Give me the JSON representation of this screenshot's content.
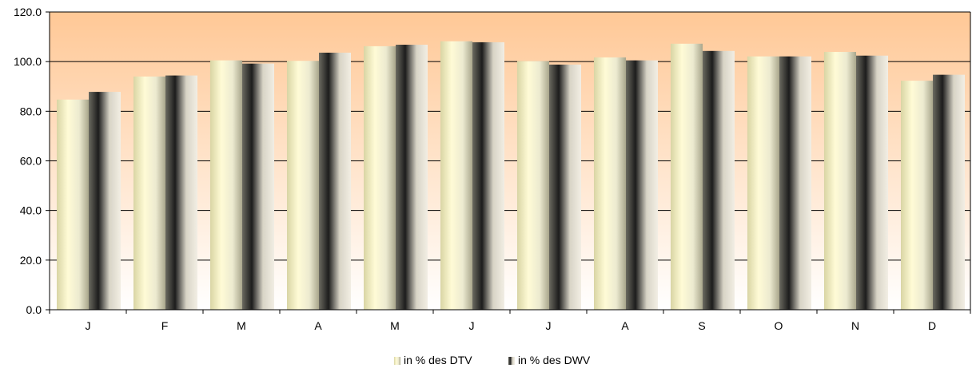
{
  "chart_data": {
    "type": "bar",
    "categories": [
      "J",
      "F",
      "M",
      "A",
      "M",
      "J",
      "J",
      "A",
      "S",
      "O",
      "N",
      "D"
    ],
    "series": [
      {
        "name": "in % des DTV",
        "values": [
          84.7,
          94.0,
          100.5,
          100.3,
          106.2,
          108.2,
          100.2,
          101.7,
          107.2,
          102.1,
          103.9,
          92.3
        ],
        "color": "#f7f4c4"
      },
      {
        "name": "in % des DWV",
        "values": [
          87.8,
          94.4,
          99.2,
          103.6,
          106.8,
          107.8,
          98.8,
          100.5,
          104.3,
          102.1,
          102.4,
          94.7
        ],
        "color": "#c8c3b4"
      }
    ],
    "title": "",
    "xlabel": "",
    "ylabel": "",
    "ylim": [
      0,
      120
    ],
    "yticks": [
      "0.0",
      "20.0",
      "40.0",
      "60.0",
      "80.0",
      "100.0",
      "120.0"
    ],
    "grid": true,
    "legend": "bottom-center",
    "background_gradient": [
      "#ffc896",
      "#ffffff"
    ]
  }
}
